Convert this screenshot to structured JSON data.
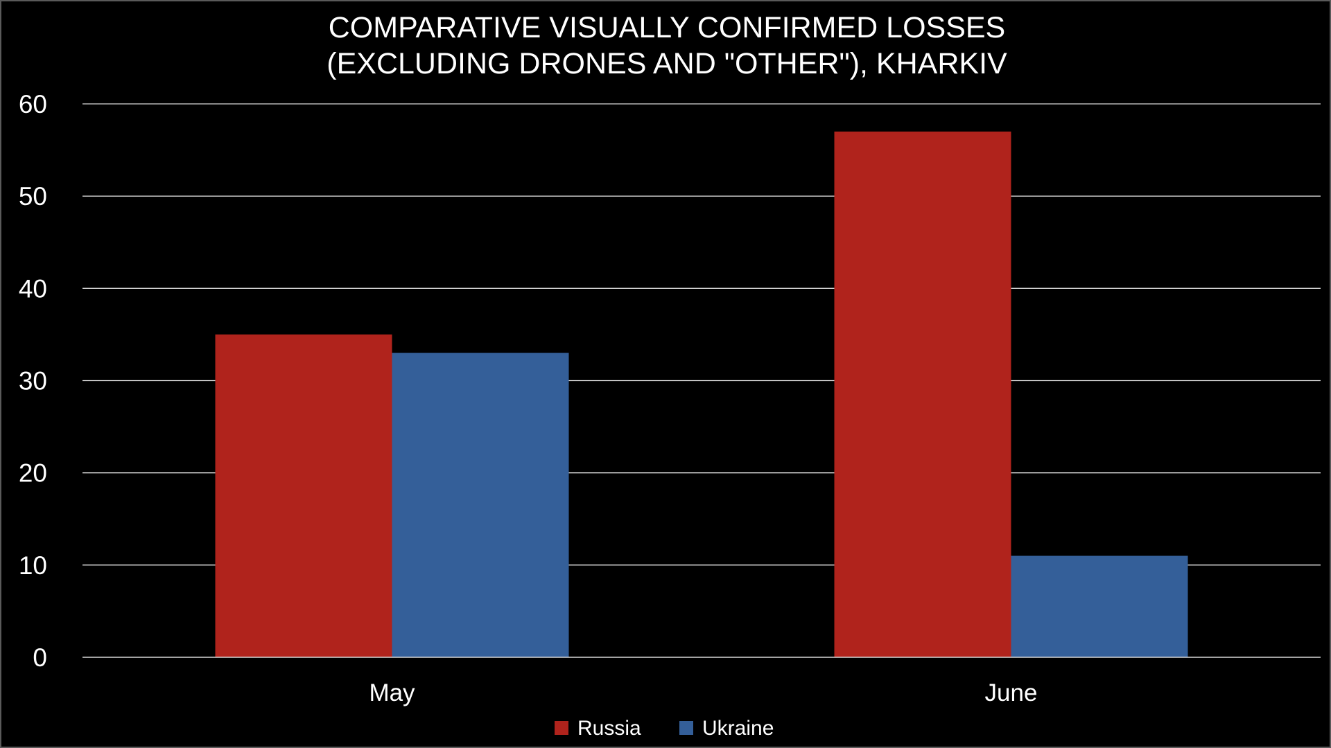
{
  "chart_data": {
    "type": "bar",
    "title_lines": [
      "COMPARATIVE VISUALLY CONFIRMED LOSSES",
      "(EXCLUDING DRONES AND \"OTHER\"), KHARKIV"
    ],
    "categories": [
      "May",
      "June"
    ],
    "series": [
      {
        "name": "Russia",
        "color": "#b0231c",
        "values": [
          35,
          57
        ]
      },
      {
        "name": "Ukraine",
        "color": "#345f99",
        "values": [
          33,
          11
        ]
      }
    ],
    "ylim": [
      0,
      60
    ],
    "yticks": [
      0,
      10,
      20,
      30,
      40,
      50,
      60
    ],
    "xlabel": "",
    "ylabel": "",
    "grid": true,
    "legend_position": "bottom"
  }
}
